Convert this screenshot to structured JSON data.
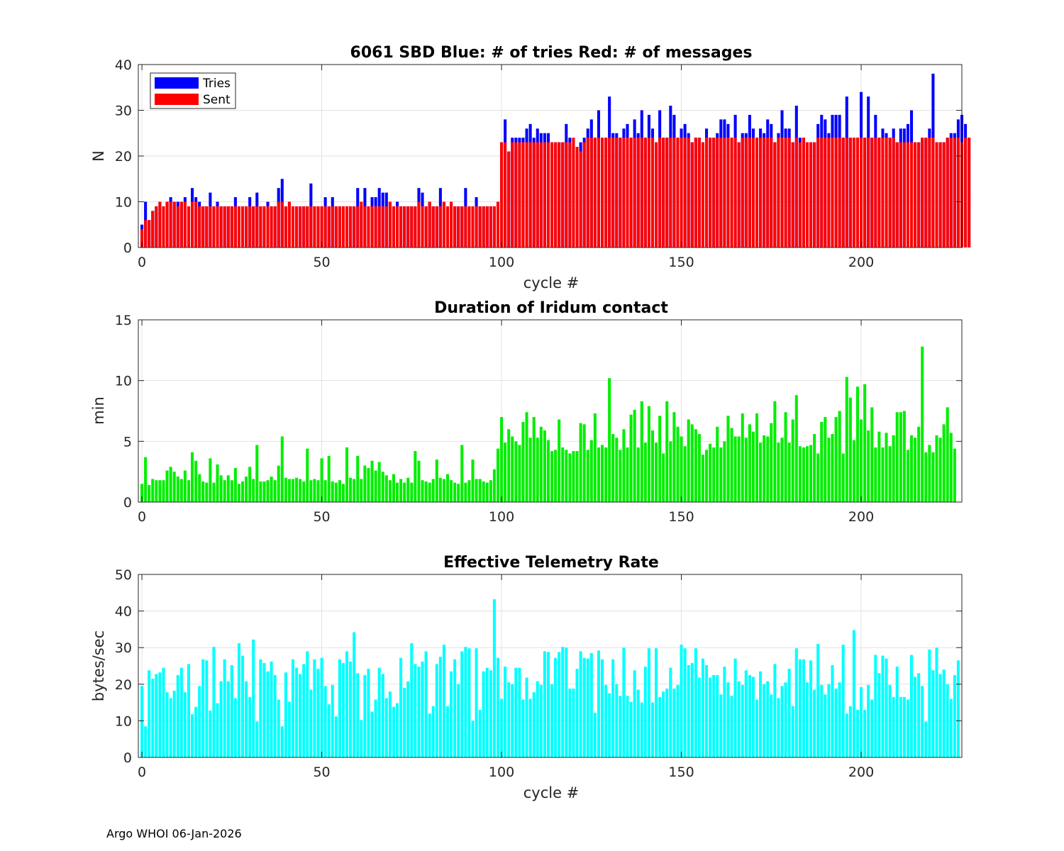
{
  "footer": "Argo WHOI 06-Jan-2026",
  "colors": {
    "tries": "#0000ff",
    "sent": "#ff0000",
    "duration": "#00ee00",
    "rate": "#00ffff"
  },
  "chart_data": [
    {
      "type": "bar",
      "title": "6061 SBD  Blue: # of tries   Red: # of messages",
      "xlabel": "cycle #",
      "ylabel": "N",
      "xlim": [
        -1,
        228
      ],
      "ylim": [
        0,
        40
      ],
      "xticks": [
        0,
        50,
        100,
        150,
        200
      ],
      "yticks": [
        0,
        10,
        20,
        30,
        40
      ],
      "legend": {
        "placement": "top-left",
        "entries": [
          "Tries",
          "Sent"
        ]
      },
      "series": [
        {
          "name": "Tries",
          "values": [
            5,
            10,
            6,
            8,
            9,
            10,
            9,
            10,
            11,
            10,
            10,
            10,
            11,
            9,
            13,
            11,
            10,
            9,
            9,
            12,
            9,
            10,
            9,
            9,
            9,
            9,
            11,
            9,
            9,
            9,
            11,
            9,
            12,
            9,
            9,
            10,
            9,
            9,
            13,
            15,
            9,
            10,
            9,
            9,
            9,
            9,
            9,
            14,
            9,
            9,
            9,
            11,
            9,
            11,
            9,
            9,
            9,
            9,
            9,
            9,
            13,
            9,
            13,
            9,
            11,
            11,
            13,
            12,
            12,
            10,
            9,
            10,
            9,
            9,
            9,
            9,
            9,
            13,
            12,
            9,
            10,
            9,
            9,
            13,
            10,
            9,
            10,
            9,
            9,
            9,
            13,
            9,
            9,
            11,
            9,
            9,
            9,
            9,
            9,
            10,
            23,
            28,
            21,
            24,
            24,
            24,
            24,
            26,
            27,
            24,
            26,
            25,
            25,
            25,
            23,
            23,
            23,
            23,
            27,
            24,
            22,
            21,
            23,
            24,
            26,
            28,
            24,
            30,
            24,
            24,
            33,
            25,
            25,
            24,
            26,
            27,
            24,
            28,
            25,
            30,
            24,
            29,
            26,
            23,
            30,
            24,
            24,
            31,
            29,
            24,
            26,
            27,
            25,
            23,
            24,
            24,
            23,
            26,
            24,
            24,
            25,
            28,
            28,
            27,
            24,
            29,
            23,
            25,
            25,
            29,
            26,
            24,
            26,
            25,
            28,
            27,
            23,
            25,
            30,
            26,
            26,
            23,
            31,
            24,
            24,
            23,
            23,
            23,
            27,
            29,
            28,
            25,
            29,
            29,
            29,
            24,
            33,
            24,
            24,
            24,
            34,
            24,
            33,
            24,
            29,
            24,
            26,
            25,
            24,
            26,
            23,
            26,
            26,
            27,
            30,
            23,
            23,
            24,
            24,
            26,
            38,
            23,
            23,
            23,
            24,
            25,
            25,
            28,
            29,
            27,
            24
          ]
        },
        {
          "name": "Sent",
          "values": [
            4,
            6,
            6,
            8,
            9,
            10,
            9,
            10,
            10,
            10,
            9,
            10,
            10,
            9,
            10,
            10,
            9,
            9,
            9,
            9,
            9,
            9,
            9,
            9,
            9,
            9,
            9,
            9,
            9,
            9,
            9,
            9,
            9,
            9,
            9,
            9,
            9,
            9,
            10,
            10,
            9,
            10,
            9,
            9,
            9,
            9,
            9,
            9,
            9,
            9,
            9,
            9,
            9,
            9,
            9,
            9,
            9,
            9,
            9,
            9,
            9,
            10,
            9,
            9,
            9,
            9,
            9,
            9,
            9,
            10,
            9,
            9,
            9,
            9,
            9,
            9,
            9,
            10,
            9,
            9,
            10,
            9,
            9,
            9,
            10,
            9,
            10,
            9,
            9,
            9,
            9,
            9,
            9,
            9,
            9,
            9,
            9,
            9,
            9,
            10,
            23,
            23,
            21,
            23,
            23,
            23,
            23,
            23,
            23,
            23,
            23,
            23,
            23,
            23,
            23,
            23,
            23,
            23,
            23,
            23,
            24,
            22,
            21,
            23,
            24,
            24,
            24,
            24,
            24,
            24,
            24,
            24,
            24,
            24,
            24,
            24,
            24,
            24,
            24,
            24,
            24,
            24,
            24,
            23,
            24,
            24,
            24,
            24,
            24,
            24,
            24,
            24,
            24,
            23,
            24,
            24,
            23,
            24,
            24,
            24,
            24,
            24,
            24,
            24,
            24,
            24,
            23,
            24,
            24,
            24,
            24,
            24,
            24,
            24,
            24,
            24,
            23,
            24,
            24,
            24,
            24,
            23,
            24,
            23,
            24,
            23,
            23,
            23,
            24,
            24,
            24,
            24,
            24,
            24,
            24,
            24,
            24,
            24,
            24,
            24,
            24,
            24,
            24,
            24,
            24,
            24,
            24,
            24,
            24,
            24,
            23,
            23,
            23,
            23,
            23,
            23,
            23,
            24,
            24,
            24,
            24,
            23,
            23,
            23,
            24,
            24,
            24,
            24,
            23,
            24,
            24
          ]
        }
      ]
    },
    {
      "type": "bar",
      "title": "Duration of Iridum contact",
      "xlabel": "",
      "ylabel": "min",
      "xlim": [
        -1,
        228
      ],
      "ylim": [
        0,
        15
      ],
      "xticks": [
        0,
        50,
        100,
        150,
        200
      ],
      "yticks": [
        0,
        5,
        10,
        15
      ],
      "series": [
        {
          "name": "Duration",
          "values": [
            1.5,
            3.7,
            1.4,
            1.9,
            1.8,
            1.8,
            1.8,
            2.6,
            2.9,
            2.5,
            2.1,
            1.9,
            2.6,
            1.8,
            4.1,
            3.4,
            2.3,
            1.7,
            1.6,
            3.6,
            1.6,
            3.1,
            2.2,
            1.8,
            2.2,
            1.8,
            2.8,
            1.5,
            1.7,
            2.1,
            2.9,
            1.9,
            4.7,
            1.7,
            1.7,
            1.8,
            2.1,
            1.8,
            3.0,
            5.4,
            2.0,
            1.9,
            1.9,
            2.0,
            1.9,
            1.7,
            4.4,
            1.8,
            1.9,
            1.8,
            3.6,
            1.8,
            3.8,
            1.7,
            1.6,
            1.8,
            1.5,
            4.5,
            2.0,
            1.9,
            3.8,
            1.9,
            3.0,
            2.8,
            3.4,
            2.6,
            3.3,
            2.5,
            2.2,
            1.8,
            2.3,
            1.6,
            1.9,
            1.6,
            2.0,
            1.6,
            4.2,
            3.4,
            1.8,
            1.7,
            1.6,
            1.9,
            3.5,
            2.0,
            1.9,
            2.3,
            1.8,
            1.6,
            1.5,
            4.7,
            1.6,
            1.8,
            3.5,
            1.9,
            1.9,
            1.7,
            1.6,
            1.8,
            2.7,
            4.4,
            7.0,
            4.9,
            6.0,
            5.4,
            5.0,
            4.7,
            6.6,
            7.4,
            5.3,
            7.0,
            5.3,
            6.2,
            5.9,
            5.1,
            4.2,
            4.3,
            6.8,
            4.5,
            4.3,
            4.0,
            4.2,
            4.2,
            6.5,
            6.4,
            4.3,
            5.1,
            7.3,
            4.5,
            4.7,
            4.5,
            10.2,
            5.6,
            5.3,
            4.3,
            6.0,
            4.5,
            7.2,
            7.6,
            4.5,
            8.3,
            4.9,
            7.9,
            5.9,
            4.9,
            7.1,
            4.0,
            8.3,
            5.0,
            7.4,
            6.2,
            5.4,
            4.6,
            6.8,
            6.4,
            6.0,
            5.6,
            3.9,
            4.3,
            4.8,
            4.5,
            6.2,
            4.5,
            5.0,
            7.1,
            6.1,
            5.4,
            5.4,
            7.3,
            5.3,
            6.4,
            5.8,
            7.3,
            4.9,
            5.5,
            5.4,
            6.5,
            8.3,
            4.9,
            5.3,
            7.4,
            4.9,
            6.8,
            8.8,
            4.6,
            4.5,
            4.6,
            4.7,
            5.6,
            4.0,
            6.6,
            7.0,
            5.3,
            5.6,
            7.0,
            7.5,
            4.0,
            10.3,
            8.6,
            5.1,
            9.5,
            6.8,
            9.7,
            5.9,
            7.8,
            4.5,
            5.8,
            4.5,
            5.7,
            4.6,
            5.5,
            7.4,
            7.4,
            7.5,
            4.3,
            5.5,
            5.3,
            6.2,
            12.8,
            4.1,
            4.7,
            4.1,
            5.5,
            5.3,
            6.4,
            7.8,
            5.7,
            4.4
          ]
        }
      ]
    },
    {
      "type": "bar",
      "title": "Effective Telemetry Rate",
      "xlabel": "cycle #",
      "ylabel": "bytes/sec",
      "xlim": [
        -1,
        228
      ],
      "ylim": [
        0,
        50
      ],
      "xticks": [
        0,
        50,
        100,
        150,
        200
      ],
      "yticks": [
        0,
        10,
        20,
        30,
        40,
        50
      ],
      "series": [
        {
          "name": "Rate",
          "values": [
            19.5,
            8.5,
            23.8,
            21.5,
            22.8,
            23.2,
            24.5,
            17.8,
            16.2,
            18.2,
            22.5,
            24.5,
            17.8,
            25.5,
            11.8,
            13.8,
            19.5,
            26.8,
            26.5,
            12.8,
            30.2,
            14.8,
            20.8,
            26.8,
            20.8,
            25.2,
            16.2,
            31.2,
            27.8,
            20.8,
            16.5,
            32.2,
            9.8,
            26.8,
            25.8,
            23.5,
            26.2,
            22.5,
            15.8,
            8.5,
            23.2,
            15.2,
            26.8,
            24.5,
            22.8,
            25.5,
            29.0,
            18.5,
            26.8,
            24.2,
            27.2,
            19.5,
            14.5,
            19.8,
            11.2,
            26.8,
            25.8,
            29.0,
            26.2,
            34.2,
            23.0,
            10.2,
            22.5,
            24.2,
            12.5,
            15.8,
            24.5,
            22.8,
            16.2,
            18.0,
            13.8,
            14.8,
            27.2,
            19.0,
            20.8,
            31.2,
            25.5,
            24.8,
            26.2,
            29.0,
            12.0,
            14.0,
            25.5,
            27.5,
            30.8,
            14.0,
            23.5,
            26.8,
            20.0,
            29.0,
            30.2,
            29.8,
            10.0,
            29.8,
            13.0,
            23.5,
            24.5,
            23.8,
            43.2,
            27.2,
            16.0,
            24.8,
            20.5,
            20.0,
            24.5,
            24.5,
            15.8,
            21.8,
            16.0,
            17.8,
            20.8,
            19.8,
            29.0,
            28.8,
            20.0,
            27.2,
            28.8,
            30.2,
            30.0,
            18.8,
            18.8,
            24.2,
            29.0,
            27.2,
            27.0,
            28.5,
            12.2,
            29.2,
            26.8,
            19.8,
            17.5,
            26.8,
            20.0,
            16.8,
            30.0,
            16.8,
            15.2,
            23.8,
            18.5,
            15.0,
            24.8,
            29.8,
            15.0,
            29.8,
            16.5,
            18.0,
            18.8,
            24.5,
            18.8,
            19.8,
            30.8,
            29.8,
            25.2,
            25.8,
            29.8,
            21.8,
            27.0,
            25.2,
            21.8,
            22.5,
            22.5,
            17.2,
            24.8,
            20.5,
            16.8,
            27.0,
            20.8,
            19.8,
            23.8,
            22.5,
            22.0,
            15.8,
            23.5,
            20.0,
            20.8,
            17.2,
            25.5,
            16.2,
            19.5,
            20.5,
            24.2,
            14.0,
            29.8,
            26.8,
            26.8,
            20.5,
            26.5,
            18.5,
            31.0,
            19.8,
            17.2,
            20.0,
            25.2,
            18.8,
            20.5,
            30.8,
            12.0,
            14.0,
            34.8,
            13.0,
            19.2,
            13.0,
            19.8,
            15.8,
            28.0,
            23.0,
            27.8,
            27.0,
            19.8,
            16.5,
            24.8,
            16.5,
            16.5,
            15.8,
            28.0,
            22.0,
            23.0,
            19.5,
            9.8,
            29.5,
            23.8,
            30.0,
            22.8,
            24.0,
            20.0,
            16.0,
            22.5,
            26.5
          ]
        }
      ]
    }
  ]
}
